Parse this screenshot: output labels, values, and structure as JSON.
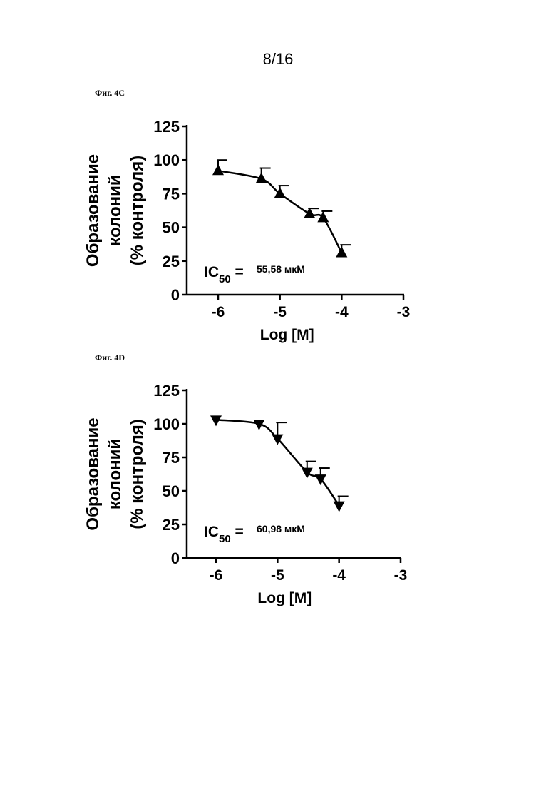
{
  "page": {
    "number": "8/16"
  },
  "figures": [
    {
      "label": "Фиг. 4C",
      "marker": "triangle-up",
      "ic50": {
        "prefix": "IC",
        "sub": "50",
        "eq": " =",
        "value": "55,58 мкМ"
      }
    },
    {
      "label": "Фиг. 4D",
      "marker": "triangle-down",
      "ic50": {
        "prefix": "IC",
        "sub": "50",
        "eq": " =",
        "value": "60,98 мкМ"
      }
    }
  ],
  "chart_data": [
    {
      "type": "scatter",
      "xlabel": "Log [M]",
      "ylabel": [
        "Образование",
        "колоний",
        "(% контроля)"
      ],
      "xlim": [
        -6.5,
        -3
      ],
      "ylim": [
        0,
        125
      ],
      "xticks": [
        -6,
        -5,
        -4,
        -3
      ],
      "yticks": [
        0,
        25,
        50,
        75,
        100,
        125
      ],
      "x": [
        -6,
        -5.3,
        -5,
        -4.52,
        -4.3,
        -4
      ],
      "y": [
        92,
        86,
        75,
        60,
        57,
        31
      ],
      "error_upper": [
        100,
        94,
        81,
        64,
        62,
        37
      ],
      "fit_curve": true
    },
    {
      "type": "scatter",
      "xlabel": "Log [M]",
      "ylabel": [
        "Образование",
        "колоний",
        "(% контроля)"
      ],
      "xlim": [
        -6.5,
        -3
      ],
      "ylim": [
        0,
        125
      ],
      "xticks": [
        -6,
        -5,
        -4,
        -3
      ],
      "yticks": [
        0,
        25,
        50,
        75,
        100,
        125
      ],
      "x": [
        -6,
        -5.3,
        -5,
        -4.52,
        -4.3,
        -4
      ],
      "y": [
        103,
        100,
        89,
        64,
        59,
        39
      ],
      "error_upper": [
        103,
        100,
        101,
        72,
        67,
        46
      ],
      "fit_curve": true
    }
  ]
}
